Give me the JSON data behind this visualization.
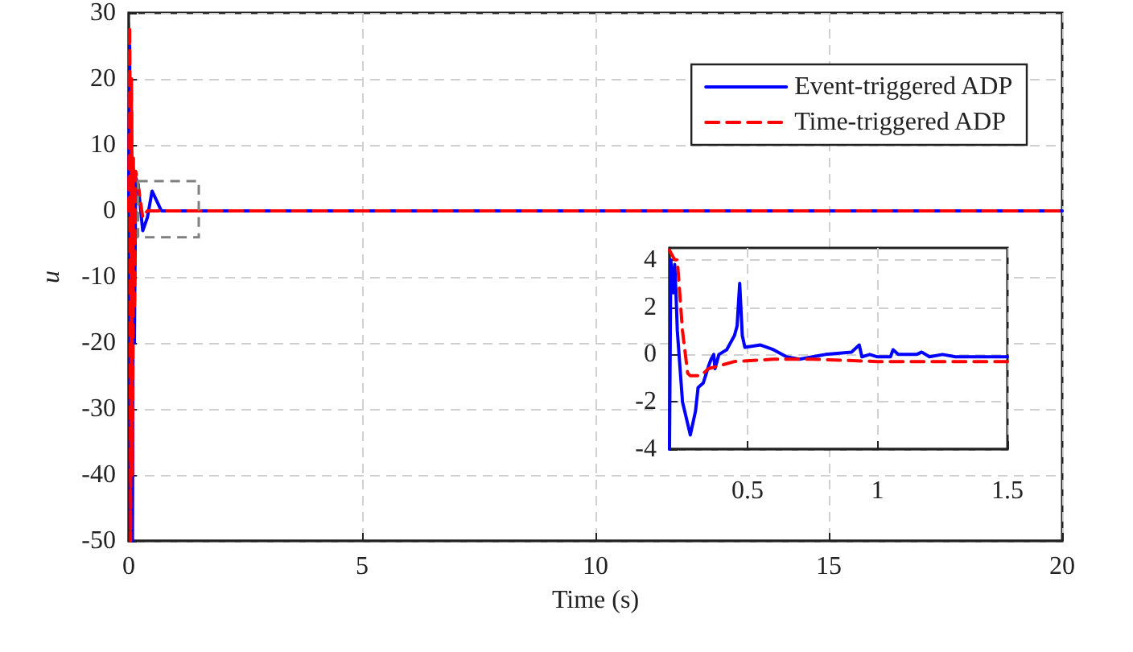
{
  "chart_data": [
    {
      "type": "line",
      "xlabel": "Time (s)",
      "ylabel": "u",
      "xlim": [
        0,
        20
      ],
      "ylim": [
        -50,
        30
      ],
      "xticks": [
        0,
        5,
        10,
        15,
        20
      ],
      "yticks": [
        -50,
        -40,
        -30,
        -20,
        -10,
        0,
        10,
        20,
        30
      ],
      "grid": true,
      "legend": "top right",
      "series": [
        {
          "name": "Event-triggered ADP",
          "color": "#0000ff",
          "line_style": "solid",
          "x": [
            0,
            0.02,
            0.04,
            0.06,
            0.08,
            0.1,
            0.12,
            0.15,
            0.2,
            0.3,
            0.4,
            0.5,
            0.7,
            1,
            2,
            5,
            10,
            15,
            20
          ],
          "values": [
            0,
            25,
            -48,
            15,
            -50,
            6,
            -20,
            5,
            4,
            -3,
            -1,
            3,
            0,
            0,
            0,
            0,
            0,
            0,
            0
          ]
        },
        {
          "name": "Time-triggered ADP",
          "color": "#ff0000",
          "line_style": "dashed",
          "x": [
            0,
            0.02,
            0.04,
            0.06,
            0.08,
            0.1,
            0.12,
            0.15,
            0.2,
            0.3,
            0.4,
            0.5,
            0.7,
            1,
            2,
            5,
            10,
            15,
            20
          ],
          "values": [
            0,
            28,
            -50,
            20,
            -40,
            8,
            -15,
            6,
            4,
            -1,
            0,
            0,
            0,
            0,
            0,
            0,
            0,
            0,
            0
          ]
        }
      ]
    },
    {
      "type": "line",
      "xlim": [
        0.2,
        1.5
      ],
      "ylim": [
        -4,
        4.5
      ],
      "xticks": [
        0.5,
        1,
        1.5
      ],
      "yticks": [
        -4,
        -2,
        0,
        2,
        4
      ],
      "grid": true,
      "series": [
        {
          "color": "#0000ff",
          "line_style": "solid",
          "x": [
            0.2,
            0.205,
            0.21,
            0.215,
            0.22,
            0.225,
            0.23,
            0.25,
            0.28,
            0.3,
            0.31,
            0.33,
            0.35,
            0.36,
            0.37,
            0.375,
            0.39,
            0.42,
            0.45,
            0.46,
            0.47,
            0.48,
            0.49,
            0.55,
            0.6,
            0.65,
            0.7,
            0.8,
            0.9,
            0.93,
            0.94,
            0.97,
            1,
            1.05,
            1.06,
            1.08,
            1.15,
            1.17,
            1.2,
            1.25,
            1.3,
            1.5
          ],
          "values": [
            -4,
            4,
            3.2,
            2.6,
            3.8,
            2.6,
            1,
            -2,
            -3.4,
            -2.4,
            -1.4,
            -1.2,
            -0.5,
            -0.2,
            0,
            -0.6,
            0,
            0.2,
            0.8,
            1.2,
            3,
            0.8,
            0.3,
            0.4,
            0.2,
            -0.1,
            -0.2,
            0,
            0.1,
            0.4,
            -0.1,
            0,
            -0.1,
            -0.1,
            0.2,
            0,
            0,
            0.1,
            -0.1,
            0,
            -0.1,
            -0.1
          ]
        },
        {
          "color": "#ff0000",
          "line_style": "dashed",
          "x": [
            0.2,
            0.22,
            0.23,
            0.25,
            0.27,
            0.28,
            0.32,
            0.35,
            0.45,
            0.6,
            0.75,
            1,
            1.5
          ],
          "values": [
            4.4,
            4,
            4,
            1,
            -0.8,
            -0.9,
            -0.9,
            -0.6,
            -0.3,
            -0.2,
            -0.2,
            -0.3,
            -0.3
          ]
        }
      ]
    }
  ]
}
